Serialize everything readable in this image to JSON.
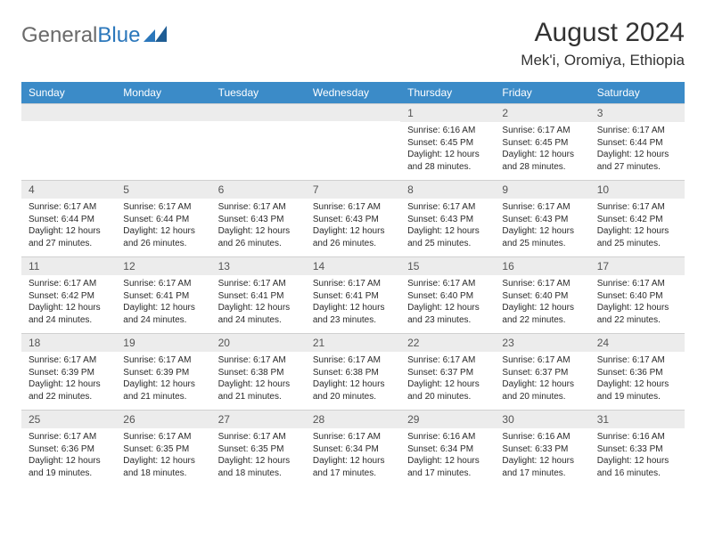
{
  "logo": {
    "text_gray": "General",
    "text_blue": "Blue"
  },
  "header": {
    "title": "August 2024",
    "subtitle": "Mek'i, Oromiya, Ethiopia"
  },
  "colors": {
    "header_bg": "#3b8bc8",
    "header_text": "#ffffff",
    "daynum_bg": "#ececec",
    "logo_gray": "#6a6a6a",
    "logo_blue": "#2b77bb"
  },
  "dayNames": [
    "Sunday",
    "Monday",
    "Tuesday",
    "Wednesday",
    "Thursday",
    "Friday",
    "Saturday"
  ],
  "weeks": [
    [
      null,
      null,
      null,
      null,
      {
        "n": "1",
        "sunrise": "6:16 AM",
        "sunset": "6:45 PM",
        "daylight": "12 hours and 28 minutes."
      },
      {
        "n": "2",
        "sunrise": "6:17 AM",
        "sunset": "6:45 PM",
        "daylight": "12 hours and 28 minutes."
      },
      {
        "n": "3",
        "sunrise": "6:17 AM",
        "sunset": "6:44 PM",
        "daylight": "12 hours and 27 minutes."
      }
    ],
    [
      {
        "n": "4",
        "sunrise": "6:17 AM",
        "sunset": "6:44 PM",
        "daylight": "12 hours and 27 minutes."
      },
      {
        "n": "5",
        "sunrise": "6:17 AM",
        "sunset": "6:44 PM",
        "daylight": "12 hours and 26 minutes."
      },
      {
        "n": "6",
        "sunrise": "6:17 AM",
        "sunset": "6:43 PM",
        "daylight": "12 hours and 26 minutes."
      },
      {
        "n": "7",
        "sunrise": "6:17 AM",
        "sunset": "6:43 PM",
        "daylight": "12 hours and 26 minutes."
      },
      {
        "n": "8",
        "sunrise": "6:17 AM",
        "sunset": "6:43 PM",
        "daylight": "12 hours and 25 minutes."
      },
      {
        "n": "9",
        "sunrise": "6:17 AM",
        "sunset": "6:43 PM",
        "daylight": "12 hours and 25 minutes."
      },
      {
        "n": "10",
        "sunrise": "6:17 AM",
        "sunset": "6:42 PM",
        "daylight": "12 hours and 25 minutes."
      }
    ],
    [
      {
        "n": "11",
        "sunrise": "6:17 AM",
        "sunset": "6:42 PM",
        "daylight": "12 hours and 24 minutes."
      },
      {
        "n": "12",
        "sunrise": "6:17 AM",
        "sunset": "6:41 PM",
        "daylight": "12 hours and 24 minutes."
      },
      {
        "n": "13",
        "sunrise": "6:17 AM",
        "sunset": "6:41 PM",
        "daylight": "12 hours and 24 minutes."
      },
      {
        "n": "14",
        "sunrise": "6:17 AM",
        "sunset": "6:41 PM",
        "daylight": "12 hours and 23 minutes."
      },
      {
        "n": "15",
        "sunrise": "6:17 AM",
        "sunset": "6:40 PM",
        "daylight": "12 hours and 23 minutes."
      },
      {
        "n": "16",
        "sunrise": "6:17 AM",
        "sunset": "6:40 PM",
        "daylight": "12 hours and 22 minutes."
      },
      {
        "n": "17",
        "sunrise": "6:17 AM",
        "sunset": "6:40 PM",
        "daylight": "12 hours and 22 minutes."
      }
    ],
    [
      {
        "n": "18",
        "sunrise": "6:17 AM",
        "sunset": "6:39 PM",
        "daylight": "12 hours and 22 minutes."
      },
      {
        "n": "19",
        "sunrise": "6:17 AM",
        "sunset": "6:39 PM",
        "daylight": "12 hours and 21 minutes."
      },
      {
        "n": "20",
        "sunrise": "6:17 AM",
        "sunset": "6:38 PM",
        "daylight": "12 hours and 21 minutes."
      },
      {
        "n": "21",
        "sunrise": "6:17 AM",
        "sunset": "6:38 PM",
        "daylight": "12 hours and 20 minutes."
      },
      {
        "n": "22",
        "sunrise": "6:17 AM",
        "sunset": "6:37 PM",
        "daylight": "12 hours and 20 minutes."
      },
      {
        "n": "23",
        "sunrise": "6:17 AM",
        "sunset": "6:37 PM",
        "daylight": "12 hours and 20 minutes."
      },
      {
        "n": "24",
        "sunrise": "6:17 AM",
        "sunset": "6:36 PM",
        "daylight": "12 hours and 19 minutes."
      }
    ],
    [
      {
        "n": "25",
        "sunrise": "6:17 AM",
        "sunset": "6:36 PM",
        "daylight": "12 hours and 19 minutes."
      },
      {
        "n": "26",
        "sunrise": "6:17 AM",
        "sunset": "6:35 PM",
        "daylight": "12 hours and 18 minutes."
      },
      {
        "n": "27",
        "sunrise": "6:17 AM",
        "sunset": "6:35 PM",
        "daylight": "12 hours and 18 minutes."
      },
      {
        "n": "28",
        "sunrise": "6:17 AM",
        "sunset": "6:34 PM",
        "daylight": "12 hours and 17 minutes."
      },
      {
        "n": "29",
        "sunrise": "6:16 AM",
        "sunset": "6:34 PM",
        "daylight": "12 hours and 17 minutes."
      },
      {
        "n": "30",
        "sunrise": "6:16 AM",
        "sunset": "6:33 PM",
        "daylight": "12 hours and 17 minutes."
      },
      {
        "n": "31",
        "sunrise": "6:16 AM",
        "sunset": "6:33 PM",
        "daylight": "12 hours and 16 minutes."
      }
    ]
  ],
  "labels": {
    "sunrise": "Sunrise: ",
    "sunset": "Sunset: ",
    "daylight": "Daylight: "
  }
}
